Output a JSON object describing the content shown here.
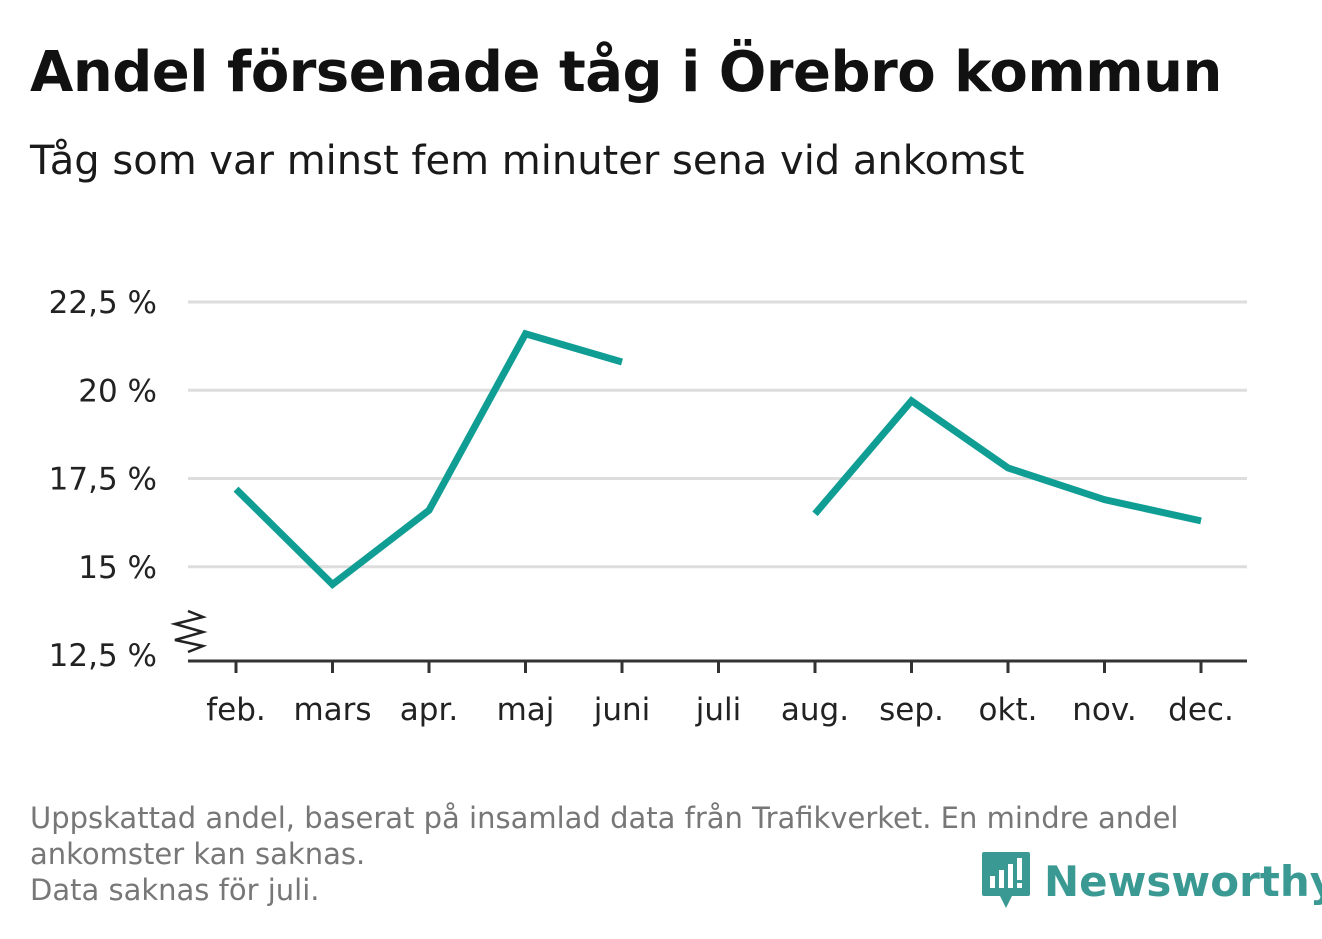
{
  "title": "Andel försenade tåg i Örebro kommun",
  "subtitle": "Tåg som var minst fem minuter sena vid ankomst",
  "footnote": {
    "line1": "Uppskattad andel, baserat på insamlad data från Trafikverket. En mindre andel",
    "line2": "ankomster kan saknas.",
    "line3": "Data saknas för juli."
  },
  "brand": {
    "name": "Newsworthy",
    "color": "#3a9a93",
    "icon": "bar-chart-speech-bubble-icon"
  },
  "colors": {
    "line": "#109e94",
    "grid": "#dddddd",
    "axis": "#333333"
  },
  "chart_data": {
    "type": "line",
    "title": "Andel försenade tåg i Örebro kommun",
    "subtitle": "Tåg som var minst fem minuter sena vid ankomst",
    "xlabel": "",
    "ylabel": "",
    "categories": [
      "feb.",
      "mars",
      "apr.",
      "maj",
      "juni",
      "juli",
      "aug.",
      "sep.",
      "okt.",
      "nov.",
      "dec."
    ],
    "series": [
      {
        "values": [
          17.2,
          14.5,
          16.6,
          21.6,
          20.8,
          null,
          16.5,
          19.7,
          17.8,
          16.9,
          16.3
        ]
      }
    ],
    "yticks": [
      12.5,
      15,
      17.5,
      20,
      22.5
    ],
    "ytick_labels": [
      "12,5 %",
      "15 %",
      "17,5 %",
      "20 %",
      "22,5 %"
    ],
    "ylim": [
      12.5,
      22.5
    ],
    "axis_break": true,
    "grid": true,
    "legend": "none"
  }
}
